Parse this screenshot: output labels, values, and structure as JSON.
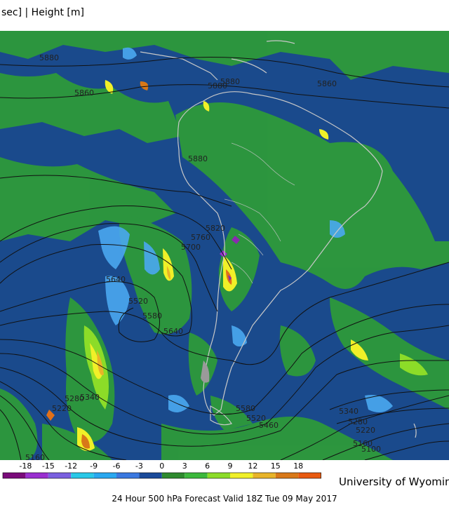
{
  "header": {
    "title": "sec] | Height [m]"
  },
  "contour_labels": [
    "5880",
    "5860",
    "5880",
    "5880",
    "5860",
    "5880",
    "5820",
    "5760",
    "5700",
    "5640",
    "5520",
    "5580",
    "5640",
    "5340",
    "5280",
    "5220",
    "5160",
    "5580",
    "5520",
    "5460",
    "5340",
    "5280",
    "5220",
    "5160",
    "5100"
  ],
  "colorbar": {
    "ticks": [
      "-18",
      "-15",
      "-12",
      "-9",
      "-6",
      "-3",
      "0",
      "3",
      "6",
      "9",
      "12",
      "15",
      "18"
    ],
    "colors": [
      "#7a0a7a",
      "#9a2fd0",
      "#7a60e0",
      "#28c8e8",
      "#28a8f0",
      "#3a78e0",
      "#1a4a9a",
      "#2e8a2e",
      "#3cb83c",
      "#8cdc28",
      "#f0f028",
      "#e8b428",
      "#d87818",
      "#e85a10"
    ]
  },
  "credit": "University of Wyoming",
  "footer": "24 Hour 500 hPa Forecast Valid 18Z Tue 09 May 2017",
  "colors": {
    "ocean": "#1a4a8c",
    "land_green": "#2e9a3a",
    "light_blue": "#4aa8f0",
    "yellow": "#f0f028",
    "orange": "#e07018",
    "purple": "#8a2ab0"
  }
}
